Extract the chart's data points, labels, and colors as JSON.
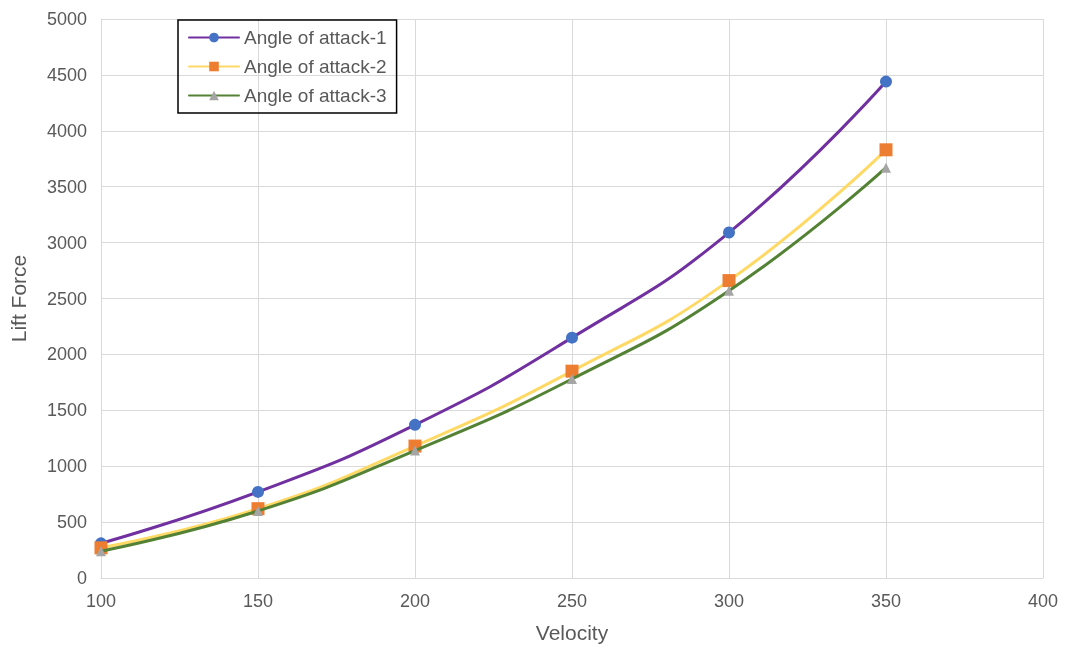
{
  "chart_data": {
    "type": "line",
    "xlabel": "Velocity",
    "ylabel": "Lift Force",
    "x": [
      100,
      150,
      200,
      250,
      300,
      350
    ],
    "series": [
      {
        "name": "Angle of attack-1",
        "color": "#7030a0",
        "colors": [
          "#4472c4",
          "#4472c4",
          "#4472c4",
          "#4472c4",
          "#4472c4",
          "#4472c4"
        ],
        "marker": "circle",
        "values": [
          310,
          770,
          1370,
          2150,
          3090,
          4440
        ]
      },
      {
        "name": "Angle of attack-2",
        "color": "#ffd966",
        "colors": [
          "#ed7d31",
          "#ed7d31",
          "#ed7d31",
          "#ed7d31",
          "#ed7d31",
          "#ed7d31"
        ],
        "marker": "square",
        "values": [
          270,
          620,
          1180,
          1850,
          2660,
          3830
        ]
      },
      {
        "name": "Angle of attack-3",
        "color": "#548235",
        "colors": [
          "#a5a5a5",
          "#a5a5a5",
          "#a5a5a5",
          "#a5a5a5",
          "#a5a5a5",
          "#a5a5a5"
        ],
        "marker": "triangle",
        "values": [
          240,
          600,
          1140,
          1780,
          2570,
          3670
        ]
      }
    ],
    "xlim": [
      100,
      400
    ],
    "xticks": [
      100,
      150,
      200,
      250,
      300,
      350,
      400
    ],
    "ylim": [
      0,
      5000
    ],
    "yticks": [
      0,
      500,
      1000,
      1500,
      2000,
      2500,
      3000,
      3500,
      4000,
      4500,
      5000
    ],
    "grid": true,
    "legend": "top left",
    "line_style": "solid"
  }
}
